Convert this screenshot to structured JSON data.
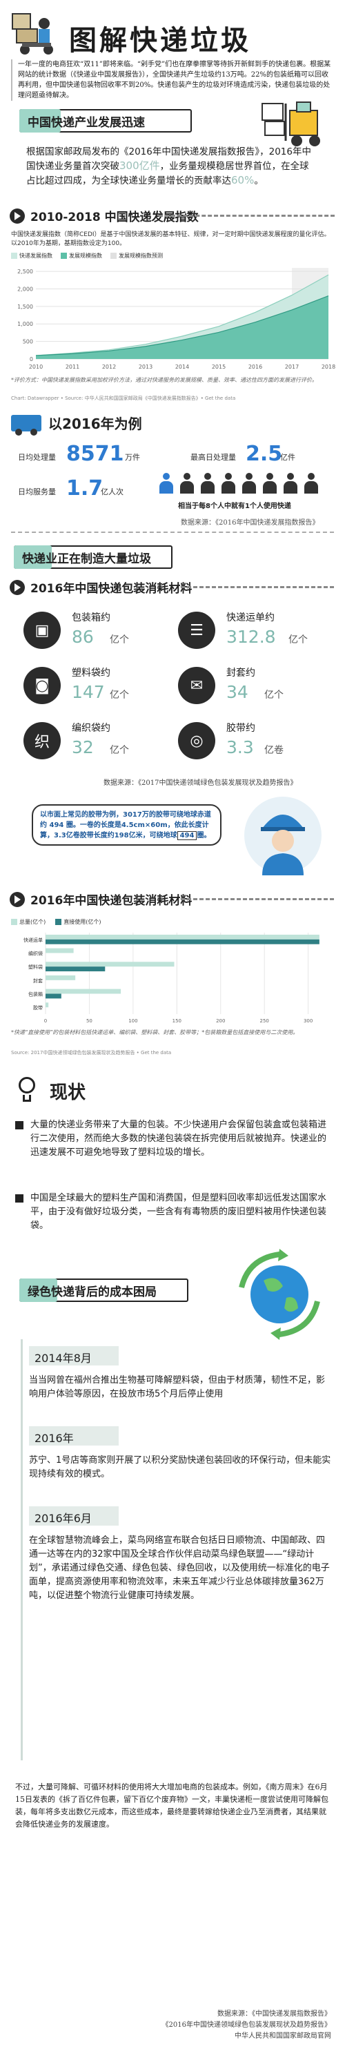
{
  "header": {
    "title": "图解快递垃圾",
    "intro": "一年一度的电商狂欢“双11”即将来临。“剁手党”们也在摩拳擦掌等待拆开新鲜到手的快递包裹。根据某网站的统计数据（《快递业中国发展报告》），全国快递共产生垃圾约13万吨。22%的包装纸箱可以回收再利用，但中国快递包装物回收率不到20%。快递包装产生的垃圾对环境造成污染，快递包装垃圾的处理问题亟待解决。"
  },
  "section1": {
    "title": "中国快递产业发展迅速",
    "body_prefix": "根据国家邮政局发布的《2016年中国快递发展指数报告》，2016年中国快递业务量首次突破",
    "body_highlight1": "300亿件",
    "body_middle": "，业务量规模稳居世界首位，在全球占比超过四成，为全球快递业务量增长的贡献率达",
    "body_highlight2": "60%",
    "body_suffix": "。"
  },
  "chart_section": {
    "title": "2010-2018 中国快递发展指数",
    "desc": "中国快递发展指数（简称CEDI）是基于中国快递发展的基本特征、规律，对一定时期中国快递发展程度的量化评估。以2010年为基期，基期指数设定为100。",
    "legend": [
      "快递发展指数",
      "发展规模指数",
      "发展规模指数预测"
    ],
    "note": "*评价方式：中国快递发展指数采用加权评价方法，通过对快递服务的发展规模、质量、效率、通达性四方面的发展进行评价。",
    "source": "Chart: Datawrapper • Source: 中华人民共和国国家邮政局《中国快递发展指数报告》• Get the data"
  },
  "chart_data": [
    {
      "type": "area",
      "title": "2010-2018 中国快递发展指数",
      "x": [
        "2010",
        "2011",
        "2012",
        "2013",
        "2014",
        "2015",
        "2016",
        "2017",
        "2018"
      ],
      "series": [
        {
          "name": "快递发展指数",
          "values": [
            100,
            170,
            260,
            420,
            650,
            930,
            1330,
            1820,
            2400
          ]
        },
        {
          "name": "发展规模指数",
          "values": [
            100,
            150,
            230,
            360,
            540,
            760,
            1050,
            1400,
            1800
          ]
        }
      ],
      "y_ticks": [
        "0",
        "500",
        "1,000",
        "1,500",
        "2,000",
        "2,500"
      ],
      "ylim": [
        0,
        2600
      ],
      "grid": true,
      "legend_position": "top-left"
    },
    {
      "type": "bar",
      "orientation": "horizontal",
      "title": "2016年中国快递包装消耗材料",
      "categories": [
        "快递运单",
        "编织袋",
        "塑料袋",
        "封套",
        "包装箱",
        "胶带"
      ],
      "series": [
        {
          "name": "总量(亿个)",
          "values": [
            312.8,
            32,
            147,
            34,
            86,
            3.3
          ]
        },
        {
          "name": "直接使用(亿个)",
          "values": [
            312.8,
            0,
            68,
            0,
            18,
            0
          ]
        }
      ],
      "xlim": [
        0,
        320
      ],
      "x_ticks": [
        "0",
        "50",
        "100",
        "150",
        "200",
        "250",
        "300"
      ]
    }
  ],
  "daily": {
    "title": "以2016年为例",
    "row1_label": "日均处理量",
    "row1_value": "8571",
    "row1_unit": "万件",
    "row1b_label": "最高日处理量",
    "row1b_value": "2.5",
    "row1b_unit": "亿件",
    "row2_label": "日均服务量",
    "row2_value": "1.7",
    "row2_unit": "亿人次",
    "people_caption": "相当于每8个人中就有1个人使用快递",
    "source": "数据来源：《2016年中国快递发展指数报告》"
  },
  "section2": {
    "title": "快递业正在制造大量垃圾",
    "sub": "2016年中国快递包装消耗材料",
    "items": [
      {
        "label": "包装箱约",
        "value": "86",
        "unit": "亿个",
        "icon": "box-icon"
      },
      {
        "label": "快递运单约",
        "value": "312.8",
        "unit": "亿个",
        "icon": "waybill-icon"
      },
      {
        "label": "塑料袋约",
        "value": "147",
        "unit": "亿个",
        "icon": "plastic-bag-icon"
      },
      {
        "label": "封套约",
        "value": "34",
        "unit": "亿个",
        "icon": "envelope-icon"
      },
      {
        "label": "编织袋约",
        "value": "32",
        "unit": "亿个",
        "icon": "woven-bag-icon"
      },
      {
        "label": "胶带约",
        "value": "3.3",
        "unit": "亿卷",
        "icon": "tape-icon"
      }
    ],
    "source": "数据来源：《2017中国快递领域绿色包装发展现状及趋势报告》",
    "bubble": "以市面上常见的胶带为例，3017万的胶带可绕地球赤道约 494 圈。一卷的长度是4.5cm×60m，依此长度计算，3.3亿卷胶带长度约198亿米，可绕地球",
    "bubble_num": "494",
    "bubble_tail": "圈。"
  },
  "bar_section": {
    "title": "2016年中国快递包装消耗材料",
    "legend": [
      "总量(亿个)",
      "直接使用(亿个)"
    ],
    "note": "*快递“直接使用”的包装材料包括快递运单、编织袋、塑料袋、封套、胶带等；*包装箱数量包括直接使用与二次使用。",
    "source": "Source: 2017中国快递领域绿色包装发展现状及趋势报告 • Get the data"
  },
  "status": {
    "title": "现状",
    "p1": "大量的快递业务带来了大量的包装。不少快递用户会保留包装盒或包装箱进行二次使用，然而绝大多数的快递包装袋在拆完使用后就被抛弃。快递业的迅速发展不可避免地导致了塑料垃圾的增长。",
    "p2": "中国是全球最大的塑料生产国和消费国，但是塑料回收率却远低发达国家水平，由于没有做好垃圾分类，一些含有有毒物质的废旧塑料被用作快递包装袋。"
  },
  "green": {
    "title": "绿色快递背后的成本困局",
    "events": [
      {
        "year": "2014年8月",
        "text": "当当网曾在福州合推出生物基可降解塑料袋，但由于材质薄，韧性不足，影响用户体验等原因，在投放市场5个月后停止使用"
      },
      {
        "year": "2016年",
        "text": "苏宁、1号店等商家则开展了以积分奖励快递包装回收的环保行动，但未能实现持续有效的模式。"
      },
      {
        "year": "2016年6月",
        "text": "在全球智慧物流峰会上，菜鸟网络宣布联合包括日日顺物流、中国邮政、四通一达等在内的32家中国及全球合作伙伴启动菜鸟绿色联盟——“绿动计划”，承诺通过绿色交通、绿色包装、绿色回收，以及使用统一标准化的电子面单，提高资源使用率和物流效率，未来五年减少行业总体碳排放量362万吨，以促进整个物流行业健康可持续发展。"
      }
    ]
  },
  "footer": {
    "text": "不过，大量可降解、可循环材料的使用将大大增加电商的包装成本。例如，《南方周末》在6月15日发表的《拆了百亿件包裹，留下百亿个废弃物》一文，丰巢快递柜一度尝试使用可降解包装，每年将多支出数亿元成本，而这些成本，最终是要转嫁给快递企业乃至消费者，其结果就会降低快递业务的发展速度。",
    "sources": [
      "数据来源：《中国快递发展指数报告》",
      "《2016年中国快递领域绿色包装发展现状及趋势报告》",
      "中华人民共和国国家邮政局官网"
    ]
  }
}
